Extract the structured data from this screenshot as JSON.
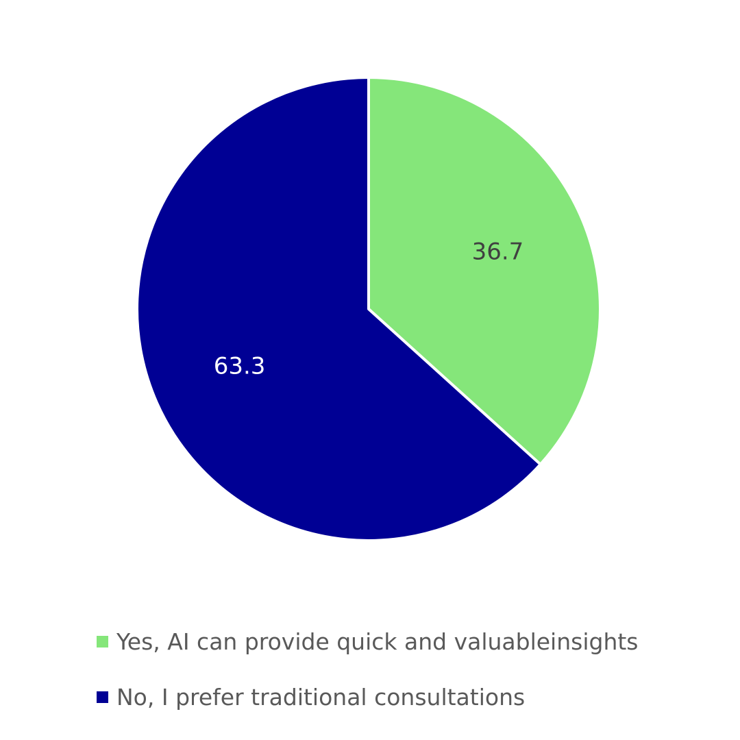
{
  "chart_data": {
    "type": "pie",
    "title": "",
    "start_angle_deg": 0,
    "direction": "clockwise",
    "slices": [
      {
        "name": "Yes, AI can provide quick and valuableinsights",
        "value": 36.7,
        "label": "36.7",
        "color": "#85e67a",
        "label_color": "#404040"
      },
      {
        "name": "No, I prefer traditional consultations",
        "value": 63.3,
        "label": "63.3",
        "color": "#000094",
        "label_color": "#ffffff"
      }
    ],
    "legend": {
      "position": "bottom",
      "entries": [
        "Yes, AI can provide quick and valuableinsights",
        "No, I prefer traditional consultations"
      ]
    }
  }
}
